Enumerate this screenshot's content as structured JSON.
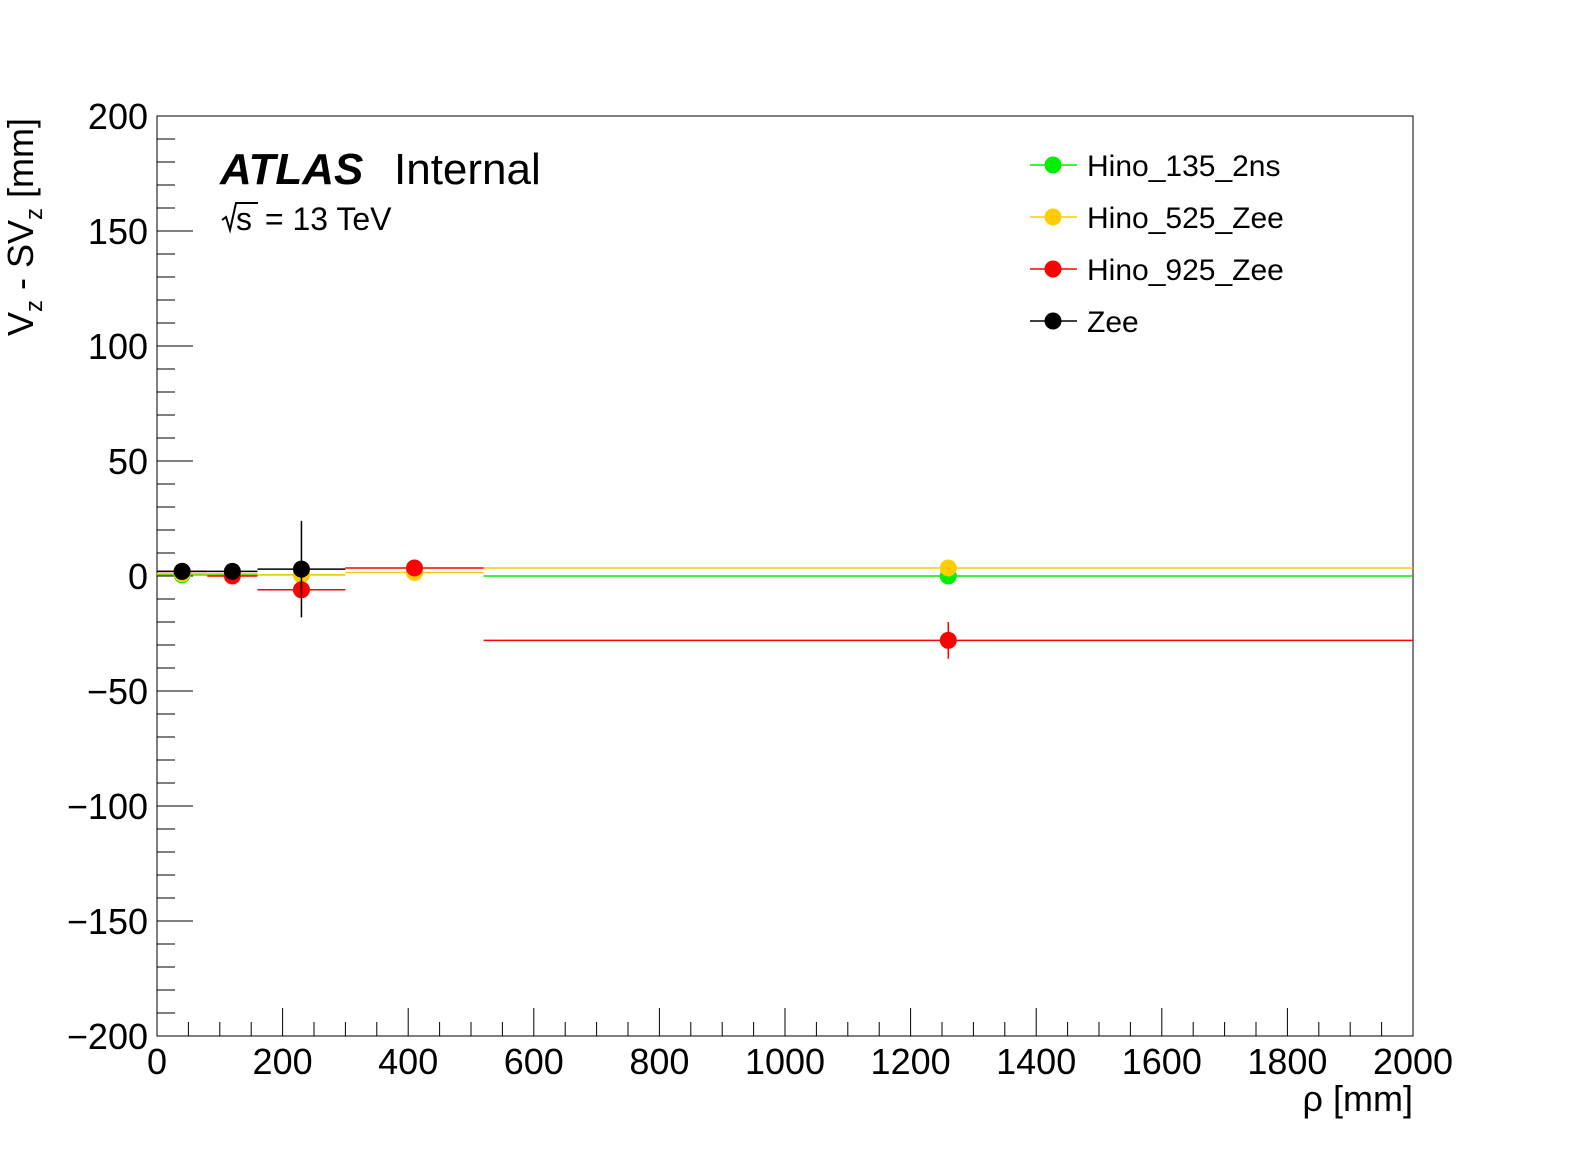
{
  "chart_data": {
    "type": "scatter",
    "xlabel": "ρ [mm]",
    "ylabel": "V_z - SV_z [mm]",
    "xlim": [
      0,
      2000
    ],
    "ylim": [
      -200,
      200
    ],
    "x_ticks": [
      "0",
      "200",
      "400",
      "600",
      "800",
      "1000",
      "1200",
      "1400",
      "1600",
      "1800",
      "2000"
    ],
    "y_ticks": [
      "−200",
      "−150",
      "−100",
      "−50",
      "0",
      "50",
      "100",
      "150",
      "200"
    ],
    "grid": false,
    "legend_position": "top-right",
    "annotation": {
      "experiment": "ATLAS",
      "status": "Internal",
      "energy_prefix": "s",
      "energy_value": " = 13 TeV"
    },
    "series": [
      {
        "name": "Hino_135_2ns",
        "color": "#00ee00",
        "points": [
          {
            "x": 40,
            "y": 0.5,
            "xlo": 0,
            "xhi": 80,
            "yerr": 0
          },
          {
            "x": 120,
            "y": 0.5,
            "xlo": 80,
            "xhi": 160,
            "yerr": 0
          },
          {
            "x": 230,
            "y": 0.5,
            "xlo": 160,
            "xhi": 300,
            "yerr": 0
          },
          {
            "x": 1260,
            "y": 0,
            "xlo": 520,
            "xhi": 2000,
            "yerr": 0
          }
        ]
      },
      {
        "name": "Hino_525_Zee",
        "color": "#ffcc00",
        "points": [
          {
            "x": 40,
            "y": 1,
            "xlo": 0,
            "xhi": 80,
            "yerr": 0
          },
          {
            "x": 120,
            "y": 1,
            "xlo": 80,
            "xhi": 160,
            "yerr": 0
          },
          {
            "x": 230,
            "y": 0.5,
            "xlo": 160,
            "xhi": 300,
            "yerr": 0
          },
          {
            "x": 410,
            "y": 1.5,
            "xlo": 300,
            "xhi": 520,
            "yerr": 0
          },
          {
            "x": 1260,
            "y": 3.5,
            "xlo": 520,
            "xhi": 2000,
            "yerr": 0
          }
        ]
      },
      {
        "name": "Hino_925_Zee",
        "color": "#ff0000",
        "points": [
          {
            "x": 40,
            "y": 2,
            "xlo": 0,
            "xhi": 80,
            "yerr": 0
          },
          {
            "x": 120,
            "y": 0,
            "xlo": 80,
            "xhi": 160,
            "yerr": 0
          },
          {
            "x": 230,
            "y": -6,
            "xlo": 160,
            "xhi": 300,
            "yerr": 0
          },
          {
            "x": 410,
            "y": 3.5,
            "xlo": 300,
            "xhi": 520,
            "yerr": 0
          },
          {
            "x": 1260,
            "y": -28,
            "xlo": 520,
            "xhi": 2000,
            "yerr": 8
          }
        ]
      },
      {
        "name": "Zee",
        "color": "#000000",
        "points": [
          {
            "x": 40,
            "y": 2,
            "xlo": 0,
            "xhi": 80,
            "yerr": 0
          },
          {
            "x": 120,
            "y": 2,
            "xlo": 80,
            "xhi": 160,
            "yerr": 0
          },
          {
            "x": 230,
            "y": 3,
            "xlo": 160,
            "xhi": 300,
            "yerr": 21
          }
        ]
      }
    ]
  }
}
